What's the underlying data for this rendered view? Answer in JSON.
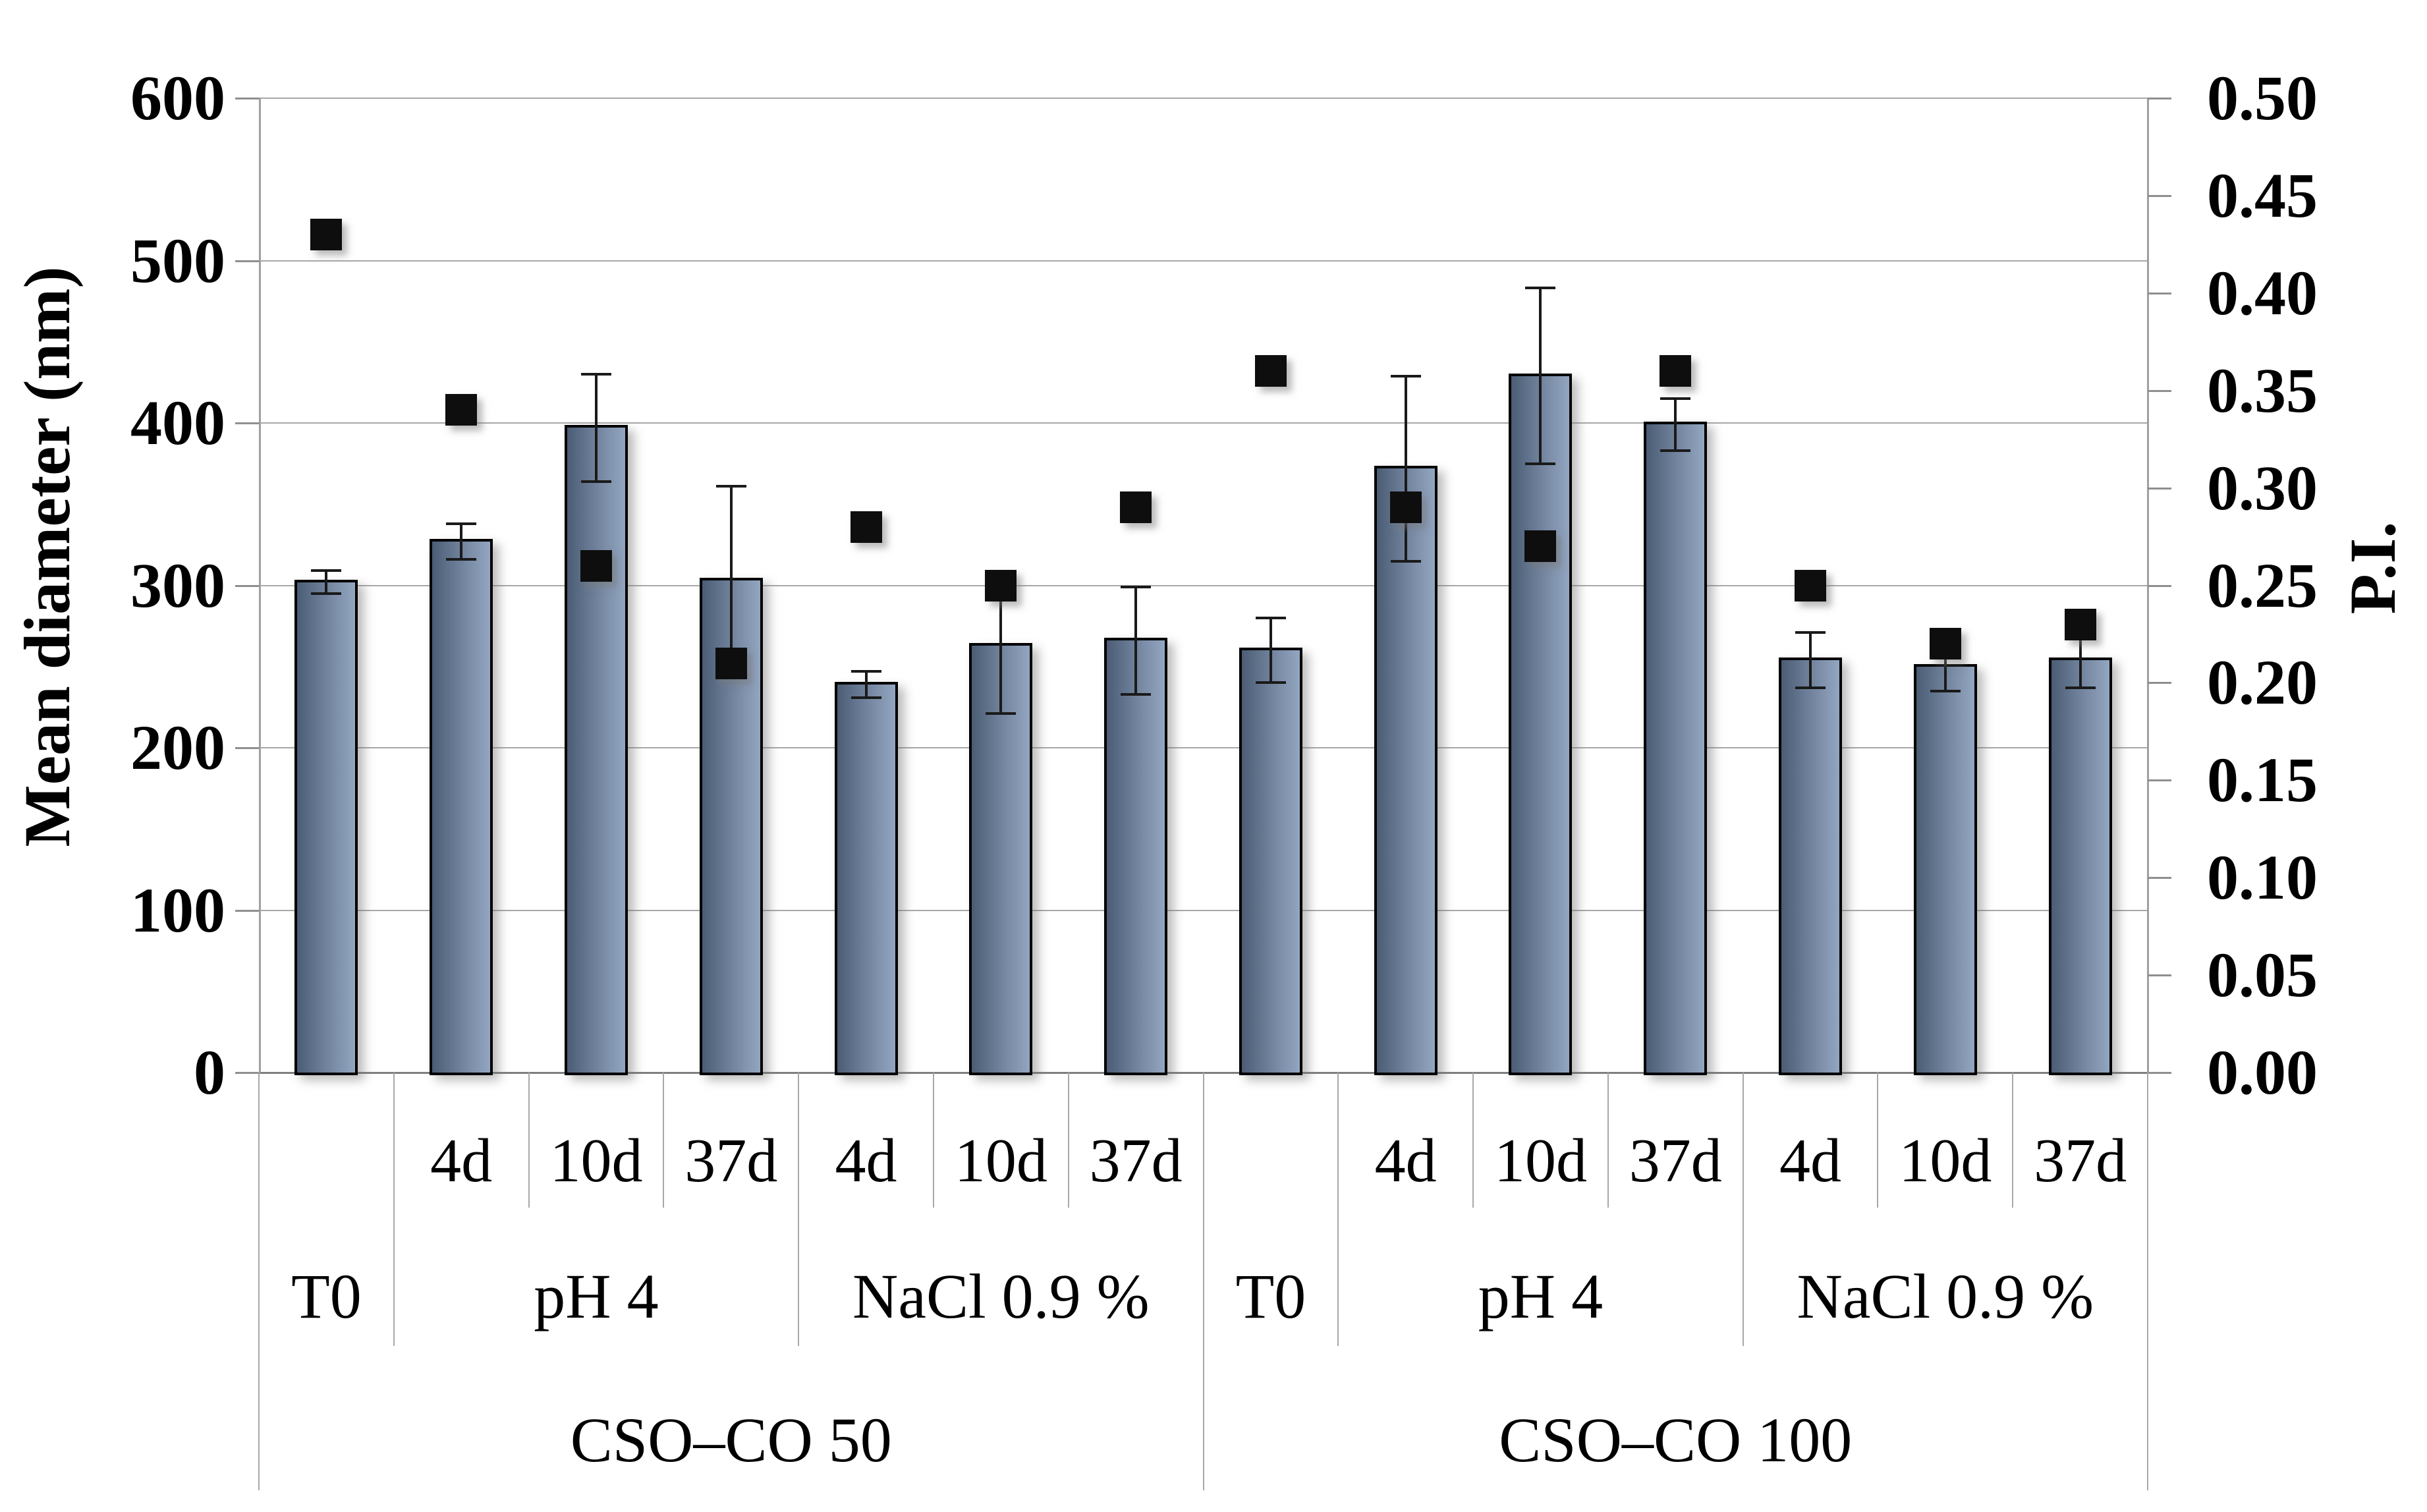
{
  "chart_data": {
    "type": "bar",
    "subtype": "dual-axis bar with square scatter markers and error bars",
    "title": "",
    "ylabel_left": "Mean diameter (nm)",
    "ylabel_right": "P.I.",
    "y_left": {
      "min": 0,
      "max": 600,
      "step": 100,
      "ticks": [
        "0",
        "100",
        "200",
        "300",
        "400",
        "500",
        "600"
      ]
    },
    "y_right": {
      "min": 0,
      "max": 0.5,
      "step": 0.05,
      "ticks": [
        "0.00",
        "0.05",
        "0.10",
        "0.15",
        "0.20",
        "0.25",
        "0.30",
        "0.35",
        "0.40",
        "0.45",
        "0.50"
      ]
    },
    "grid": "horizontal",
    "legend": "none",
    "bar_color_hint": "#7b8da7",
    "marker_color_hint": "#0e0e0e",
    "groups": [
      {
        "polymer": "CSO–CO 50",
        "sections": [
          {
            "label": "T0",
            "bars": [
              {
                "day": "",
                "mean": 302,
                "err": 7,
                "pi": 0.43
              }
            ]
          },
          {
            "label": "pH 4",
            "bars": [
              {
                "day": "4d",
                "mean": 327,
                "err": 11,
                "pi": 0.34
              },
              {
                "day": "10d",
                "mean": 397,
                "err": 33,
                "pi": 0.26
              },
              {
                "day": "37d",
                "mean": 303,
                "err": 58,
                "pi": 0.21
              }
            ]
          },
          {
            "label": "NaCl 0.9 %",
            "bars": [
              {
                "day": "4d",
                "mean": 239,
                "err": 8,
                "pi": 0.28
              },
              {
                "day": "10d",
                "mean": 263,
                "err": 42,
                "pi": 0.25
              },
              {
                "day": "37d",
                "mean": 266,
                "err": 33,
                "pi": 0.29
              }
            ]
          }
        ]
      },
      {
        "polymer": "CSO–CO 100",
        "sections": [
          {
            "label": "T0",
            "bars": [
              {
                "day": "",
                "mean": 260,
                "err": 20,
                "pi": 0.36
              }
            ]
          },
          {
            "label": "pH 4",
            "bars": [
              {
                "day": "4d",
                "mean": 372,
                "err": 57,
                "pi": 0.29
              },
              {
                "day": "10d",
                "mean": 429,
                "err": 54,
                "pi": 0.27
              },
              {
                "day": "37d",
                "mean": 399,
                "err": 16,
                "pi": 0.36
              }
            ]
          },
          {
            "label": "NaCl 0.9 %",
            "bars": [
              {
                "day": "4d",
                "mean": 254,
                "err": 17,
                "pi": 0.25
              },
              {
                "day": "10d",
                "mean": 250,
                "err": 15,
                "pi": 0.22
              },
              {
                "day": "37d",
                "mean": 254,
                "err": 17,
                "pi": 0.23
              }
            ]
          }
        ]
      }
    ]
  }
}
